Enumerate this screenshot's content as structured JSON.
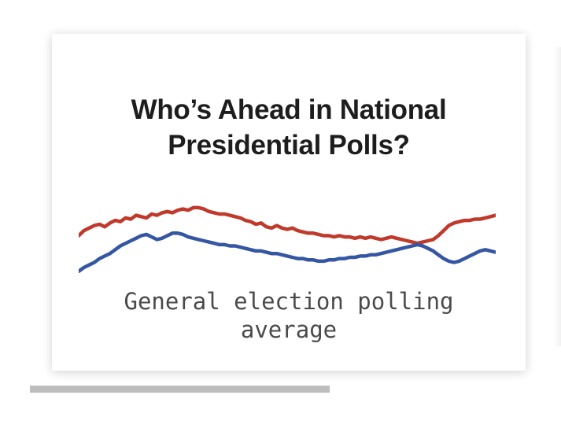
{
  "card": {
    "title": "Who’s Ahead in National Presidential Polls?",
    "subtitle": "General election polling average"
  },
  "colors": {
    "republican": "#c0392b",
    "democrat": "#3456a3",
    "title_text": "#1d1d1d",
    "subtitle_text": "#4a4a4a",
    "scrollbar_thumb": "#bdbdbd"
  },
  "scrollbar": {
    "thumb_fraction": 0.6
  },
  "chart_data": {
    "type": "line",
    "title": "",
    "xlabel": "",
    "ylabel": "",
    "grid": false,
    "series": [
      {
        "color": "#c0392b",
        "values": [
          78,
          82,
          84,
          86,
          87,
          85,
          88,
          90,
          89,
          92,
          91,
          94,
          93,
          92,
          95,
          94,
          96,
          97,
          96,
          98,
          99,
          98,
          100,
          100,
          99,
          97,
          96,
          95,
          95,
          94,
          93,
          92,
          90,
          89,
          87,
          88,
          85,
          84,
          86,
          84,
          83,
          84,
          82,
          81,
          80,
          80,
          79,
          78,
          78,
          77,
          78,
          77,
          77,
          76,
          77,
          76,
          77,
          76,
          75,
          76,
          77,
          76,
          75,
          74,
          73,
          72,
          73,
          74,
          75,
          78,
          82,
          86,
          88,
          89,
          90,
          90,
          91,
          91,
          92,
          93,
          94
        ]
      },
      {
        "color": "#3456a3",
        "values": [
          50,
          53,
          55,
          57,
          60,
          62,
          64,
          67,
          70,
          72,
          74,
          76,
          78,
          79,
          77,
          75,
          76,
          78,
          80,
          80,
          79,
          77,
          76,
          75,
          74,
          73,
          72,
          71,
          71,
          70,
          70,
          69,
          68,
          67,
          66,
          66,
          65,
          64,
          64,
          63,
          62,
          61,
          60,
          60,
          59,
          59,
          58,
          58,
          59,
          59,
          60,
          60,
          61,
          61,
          62,
          62,
          63,
          63,
          64,
          65,
          66,
          67,
          68,
          69,
          70,
          71,
          70,
          68,
          66,
          63,
          60,
          58,
          57,
          58,
          60,
          62,
          64,
          66,
          67,
          66,
          65
        ]
      }
    ],
    "ylim": [
      40,
      108
    ]
  }
}
